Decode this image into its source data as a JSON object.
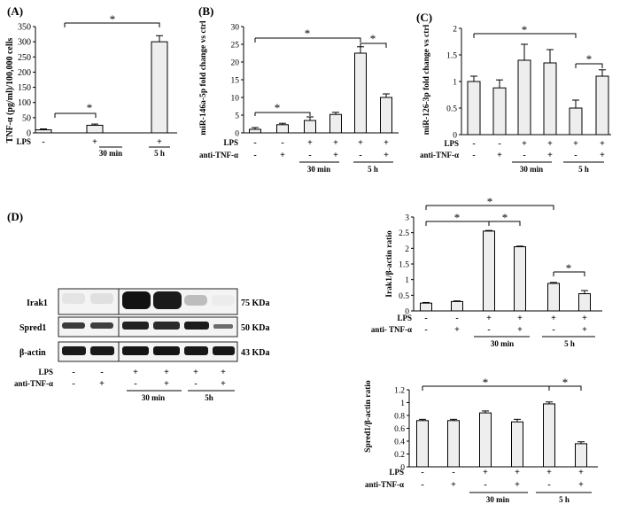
{
  "colors": {
    "bar_fill": "#eeeeee",
    "bar_stroke": "#000000",
    "axis": "#000000",
    "blot_background": "#f2f2f2",
    "blot_band": "#111111"
  },
  "panel_labels": {
    "a": "(A)",
    "b": "(B)",
    "c": "(C)",
    "d": "(D)"
  },
  "marks": {
    "plus": "+",
    "minus": "-",
    "star": "*"
  },
  "row_labels": {
    "lps": "LPS",
    "anti_tnf": "anti-TNF-α",
    "anti_tnf_spaced": "anti- TNF-α"
  },
  "time_labels": {
    "t30": "30 min",
    "t5h": "5 h",
    "t5h_compact": "5h"
  },
  "blot": {
    "rows": [
      {
        "protein": "Irak1",
        "size": "75 KDa"
      },
      {
        "protein": "Spred1",
        "size": "50 KDa"
      },
      {
        "protein": "β-actin",
        "size": "43 KDa"
      }
    ]
  },
  "chart_data": [
    {
      "id": "A",
      "type": "bar",
      "ylabel": "TNF-α (pg/ml)/100,000 cells",
      "ylim": [
        0,
        350
      ],
      "yticks": [
        0,
        50,
        100,
        150,
        200,
        250,
        300,
        350
      ],
      "values": [
        10,
        25,
        300
      ],
      "errors": [
        3,
        4,
        20
      ],
      "lps": [
        "-",
        "+",
        "+"
      ],
      "anti_tnf": null
    },
    {
      "id": "B",
      "type": "bar",
      "ylabel": "miR-146a-5p fold change vs ctrl",
      "ylim": [
        0,
        30
      ],
      "yticks": [
        0,
        5,
        10,
        15,
        20,
        25,
        30
      ],
      "values": [
        1,
        2.3,
        3.5,
        5.2,
        22.5,
        10
      ],
      "errors": [
        0.5,
        0.4,
        1,
        0.6,
        1.8,
        1
      ],
      "lps": [
        "-",
        "-",
        "+",
        "+",
        "+",
        "+"
      ],
      "anti_tnf": [
        "-",
        "+",
        "-",
        "+",
        "-",
        "+"
      ]
    },
    {
      "id": "C",
      "type": "bar",
      "ylabel": "miR-126-3p fold change vs ctrl",
      "ylim": [
        0,
        2
      ],
      "yticks": [
        0,
        0.5,
        1,
        1.5,
        2
      ],
      "values": [
        1,
        0.88,
        1.4,
        1.35,
        0.5,
        1.1
      ],
      "errors": [
        0.1,
        0.15,
        0.3,
        0.25,
        0.15,
        0.12
      ],
      "lps": [
        "-",
        "-",
        "+",
        "+",
        "+",
        "+"
      ],
      "anti_tnf": [
        "-",
        "+",
        "-",
        "+",
        "-",
        "+"
      ]
    },
    {
      "id": "D-Irak1",
      "type": "bar",
      "ylabel": "Irak1/β-actin ratio",
      "ylim": [
        0,
        3
      ],
      "yticks": [
        0,
        0.5,
        1,
        1.5,
        2,
        2.5,
        3
      ],
      "values": [
        0.25,
        0.3,
        2.55,
        2.05,
        0.88,
        0.55
      ],
      "errors": [
        0.02,
        0.02,
        0.02,
        0.02,
        0.03,
        0.1
      ],
      "lps": [
        "-",
        "-",
        "+",
        "+",
        "+",
        "+"
      ],
      "anti_tnf": [
        "-",
        "+",
        "-",
        "+",
        "-",
        "+"
      ]
    },
    {
      "id": "D-Spred1",
      "type": "bar",
      "ylabel": "Spred1/β-actin ratio",
      "ylim": [
        0,
        1.2
      ],
      "yticks": [
        0,
        0.2,
        0.4,
        0.6,
        0.8,
        1,
        1.2
      ],
      "values": [
        0.72,
        0.72,
        0.84,
        0.7,
        0.98,
        0.36
      ],
      "errors": [
        0.02,
        0.02,
        0.03,
        0.04,
        0.03,
        0.03
      ],
      "lps": [
        "-",
        "-",
        "+",
        "+",
        "+",
        "+"
      ],
      "anti_tnf": [
        "-",
        "+",
        "-",
        "+",
        "-",
        "+"
      ]
    }
  ]
}
